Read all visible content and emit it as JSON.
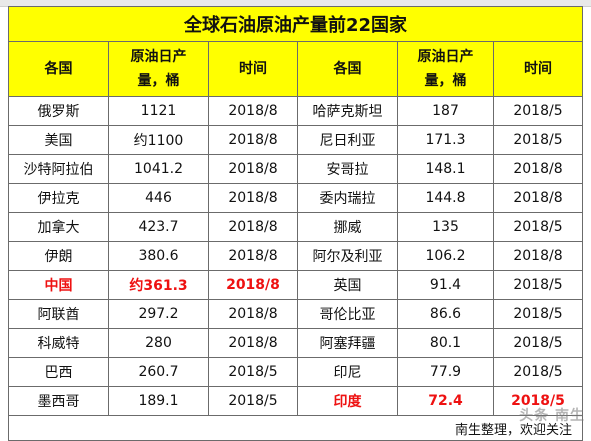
{
  "title": "全球石油原油产量前22国家",
  "headers": {
    "country": "各国",
    "output": "原油日产量，桶",
    "time": "时间"
  },
  "rows": [
    {
      "c1": "俄罗斯",
      "v1": "1121",
      "t1": "2018/8",
      "c2": "哈萨克斯坦",
      "v2": "187",
      "t2": "2018/5"
    },
    {
      "c1": "美国",
      "v1": "约1100",
      "t1": "2018/8",
      "c2": "尼日利亚",
      "v2": "171.3",
      "t2": "2018/5"
    },
    {
      "c1": "沙特阿拉伯",
      "v1": "1041.2",
      "t1": "2018/8",
      "c2": "安哥拉",
      "v2": "148.1",
      "t2": "2018/8"
    },
    {
      "c1": "伊拉克",
      "v1": "446",
      "t1": "2018/8",
      "c2": "委内瑞拉",
      "v2": "144.8",
      "t2": "2018/8"
    },
    {
      "c1": "加拿大",
      "v1": "423.7",
      "t1": "2018/8",
      "c2": "挪威",
      "v2": "135",
      "t2": "2018/5"
    },
    {
      "c1": "伊朗",
      "v1": "380.6",
      "t1": "2018/8",
      "c2": "阿尔及利亚",
      "v2": "106.2",
      "t2": "2018/8"
    },
    {
      "c1": "中国",
      "v1": "约361.3",
      "t1": "2018/8",
      "c2": "英国",
      "v2": "91.4",
      "t2": "2018/5"
    },
    {
      "c1": "阿联酋",
      "v1": "297.2",
      "t1": "2018/8",
      "c2": "哥伦比亚",
      "v2": "86.6",
      "t2": "2018/5"
    },
    {
      "c1": "科威特",
      "v1": "280",
      "t1": "2018/8",
      "c2": "阿塞拜疆",
      "v2": "80.1",
      "t2": "2018/5"
    },
    {
      "c1": "巴西",
      "v1": "260.7",
      "t1": "2018/5",
      "c2": "印尼",
      "v2": "77.9",
      "t2": "2018/5"
    },
    {
      "c1": "墨西哥",
      "v1": "189.1",
      "t1": "2018/5",
      "c2": "印度",
      "v2": "72.4",
      "t2": "2018/5"
    }
  ],
  "note": "南生整理，欢迎关注",
  "watermark": "头条 南生",
  "colors": {
    "header_bg": "#ffff00",
    "highlight": "#ee1111",
    "border": "#6b6b6b"
  }
}
